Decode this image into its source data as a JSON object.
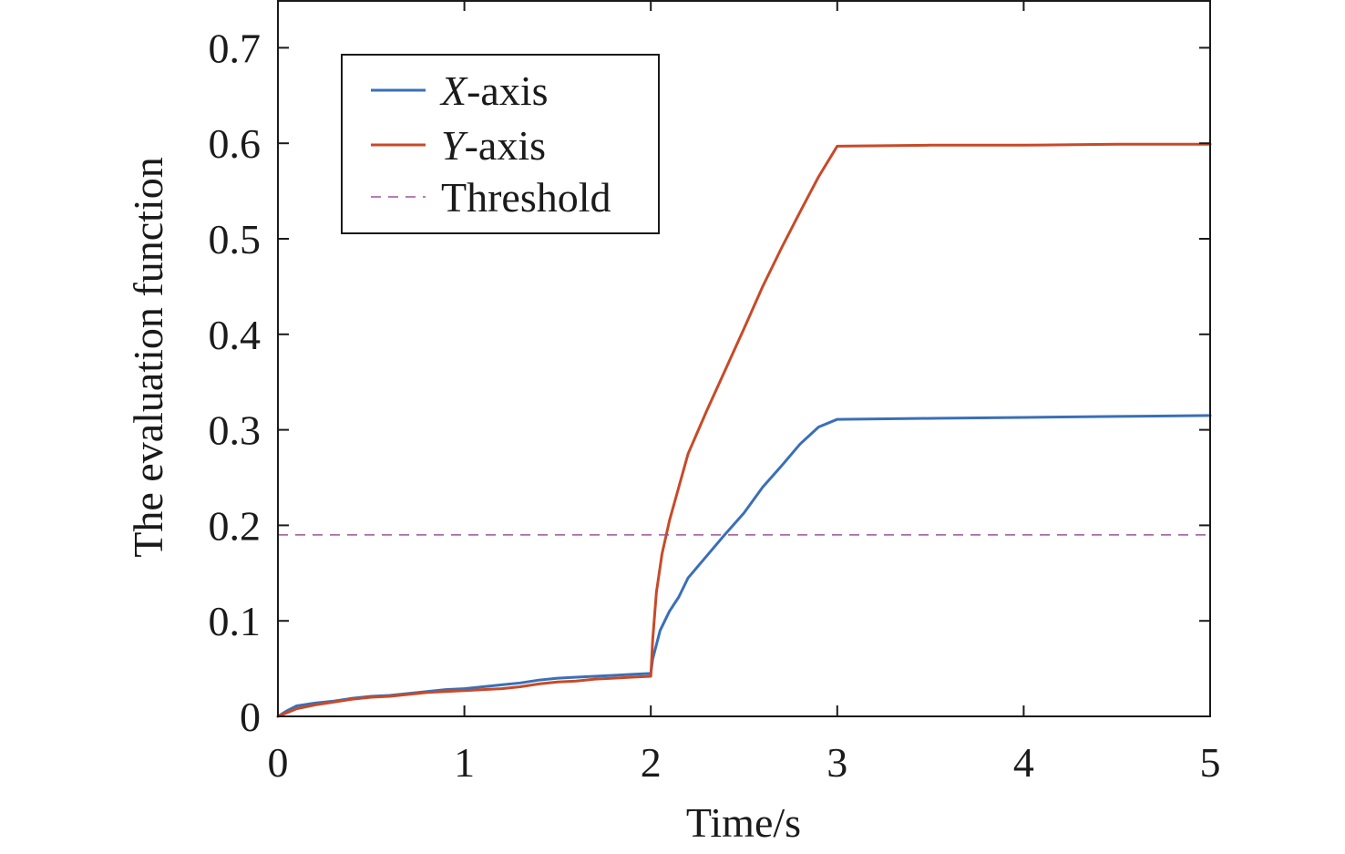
{
  "chart_data": {
    "type": "line",
    "xlabel": "Time/s",
    "ylabel": "The evaluation function",
    "xlim": [
      0,
      5
    ],
    "ylim": [
      0,
      0.75
    ],
    "xticks": [
      0,
      1,
      2,
      3,
      4,
      5
    ],
    "xtick_labels": [
      "0",
      "1",
      "2",
      "3",
      "4",
      "5"
    ],
    "yticks": [
      0,
      0.1,
      0.2,
      0.3,
      0.4,
      0.5,
      0.6,
      0.7
    ],
    "ytick_labels": [
      "0",
      "0.1",
      "0.2",
      "0.3",
      "0.4",
      "0.5",
      "0.6",
      "0.7"
    ],
    "grid": false,
    "legend_position": "top-left",
    "series": [
      {
        "name": "X-axis",
        "legend_italic": "X",
        "legend_rest": "-axis",
        "color": "#3a6fb8",
        "style": "solid",
        "x": [
          0,
          0.05,
          0.1,
          0.2,
          0.3,
          0.4,
          0.5,
          0.6,
          0.7,
          0.8,
          0.9,
          1.0,
          1.1,
          1.2,
          1.3,
          1.4,
          1.5,
          1.6,
          1.7,
          1.8,
          1.9,
          2.0,
          2.01,
          2.05,
          2.1,
          2.15,
          2.2,
          2.3,
          2.4,
          2.5,
          2.6,
          2.7,
          2.8,
          2.9,
          3.0,
          3.5,
          4.0,
          4.5,
          5.0
        ],
        "y": [
          0,
          0.006,
          0.011,
          0.014,
          0.016,
          0.019,
          0.021,
          0.022,
          0.024,
          0.026,
          0.028,
          0.029,
          0.031,
          0.033,
          0.035,
          0.038,
          0.04,
          0.041,
          0.042,
          0.043,
          0.044,
          0.045,
          0.06,
          0.09,
          0.11,
          0.125,
          0.145,
          0.168,
          0.191,
          0.213,
          0.24,
          0.262,
          0.285,
          0.303,
          0.311,
          0.312,
          0.313,
          0.314,
          0.315
        ]
      },
      {
        "name": "Y-axis",
        "legend_italic": "Y",
        "legend_rest": "-axis",
        "color": "#c84a28",
        "style": "solid",
        "x": [
          0,
          0.05,
          0.1,
          0.2,
          0.3,
          0.4,
          0.5,
          0.6,
          0.7,
          0.8,
          0.9,
          1.0,
          1.1,
          1.2,
          1.3,
          1.4,
          1.5,
          1.6,
          1.7,
          1.8,
          1.9,
          2.0,
          2.01,
          2.03,
          2.06,
          2.1,
          2.15,
          2.2,
          2.3,
          2.4,
          2.5,
          2.6,
          2.7,
          2.8,
          2.9,
          3.0,
          3.5,
          4.0,
          4.5,
          5.0
        ],
        "y": [
          0,
          0.004,
          0.008,
          0.012,
          0.015,
          0.018,
          0.02,
          0.021,
          0.023,
          0.025,
          0.026,
          0.027,
          0.028,
          0.029,
          0.031,
          0.034,
          0.036,
          0.037,
          0.039,
          0.04,
          0.041,
          0.042,
          0.08,
          0.13,
          0.17,
          0.205,
          0.24,
          0.275,
          0.32,
          0.363,
          0.406,
          0.45,
          0.49,
          0.528,
          0.565,
          0.597,
          0.598,
          0.598,
          0.599,
          0.599
        ]
      },
      {
        "name": "Threshold",
        "color": "#a0529c",
        "style": "dashed",
        "x": [
          0,
          5
        ],
        "y": [
          0.19,
          0.19
        ]
      }
    ]
  }
}
